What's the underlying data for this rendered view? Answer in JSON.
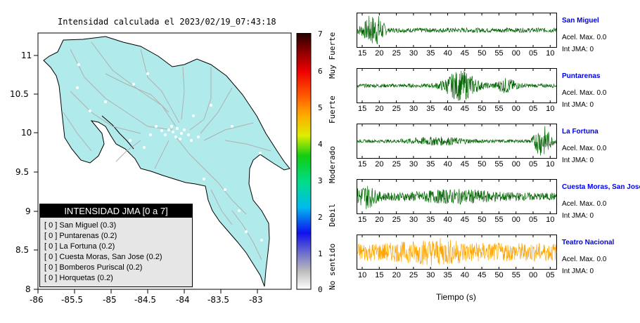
{
  "map": {
    "title": "Intensidad calculada el 2023/02/19_07:43:18",
    "x_ticks": [
      "-86",
      "-85.5",
      "-85",
      "-84.5",
      "-84",
      "-83.5",
      "-83"
    ],
    "y_ticks": [
      "11",
      "10.5",
      "10",
      "9.5",
      "9",
      "8.5",
      "8"
    ]
  },
  "colorbar": {
    "ticks": [
      "7",
      "6",
      "5",
      "4",
      "3",
      "2",
      "1",
      "0"
    ],
    "labels": [
      "Muy Fuerte",
      "Fuerte",
      "Moderado",
      "Debil",
      "No sentido"
    ]
  },
  "legend": {
    "title": "INTENSIDAD JMA [0 a 7]",
    "items": [
      "[ 0 ]  San Miguel (0.3)",
      "[ 0 ]  Puntarenas (0.2)",
      "[ 0 ]  La Fortuna (0.2)",
      "[ 0 ]  Cuesta Moras, San Jose (0.2)",
      "[ 0 ]  Bomberos Puriscal (0.2)",
      "[ 0 ]  Horquetas (0.2)"
    ]
  },
  "waveforms": [
    {
      "name": "San Miguel",
      "acel": "Acel. Max. 0.0",
      "int": "Int JMA: 0",
      "color": "#006400",
      "ticks": [
        "15",
        "20",
        "25",
        "30",
        "35",
        "40",
        "45",
        "50",
        "55",
        "00",
        "05",
        "10"
      ]
    },
    {
      "name": "Puntarenas",
      "acel": "Acel. Max. 0.0",
      "int": "Int JMA: 0",
      "color": "#006400",
      "ticks": [
        "15",
        "20",
        "25",
        "30",
        "35",
        "40",
        "45",
        "50",
        "55",
        "00",
        "05",
        "10"
      ]
    },
    {
      "name": "La Fortuna",
      "acel": "Acel. Max. 0.0",
      "int": "Int JMA: 0",
      "color": "#006400",
      "ticks": [
        "15",
        "20",
        "25",
        "30",
        "35",
        "40",
        "45",
        "50",
        "55",
        "00",
        "05",
        "10"
      ]
    },
    {
      "name": "Cuesta Moras, San Jose",
      "acel": "Acel. Max. 0.0",
      "int": "Int JMA: 0",
      "color": "#006400",
      "ticks": [
        "15",
        "20",
        "25",
        "30",
        "35",
        "40",
        "45",
        "50",
        "55",
        "00",
        "05",
        "10"
      ]
    },
    {
      "name": "Teatro Nacional",
      "acel": "Acel. Max. 0.0",
      "int": "Int JMA: 0",
      "color": "#ffa500",
      "ticks": [
        "10",
        "15",
        "20",
        "25",
        "30",
        "35",
        "40",
        "45",
        "50",
        "55",
        "00",
        "05"
      ]
    }
  ],
  "time_axis_label": "Tiempo (s)"
}
